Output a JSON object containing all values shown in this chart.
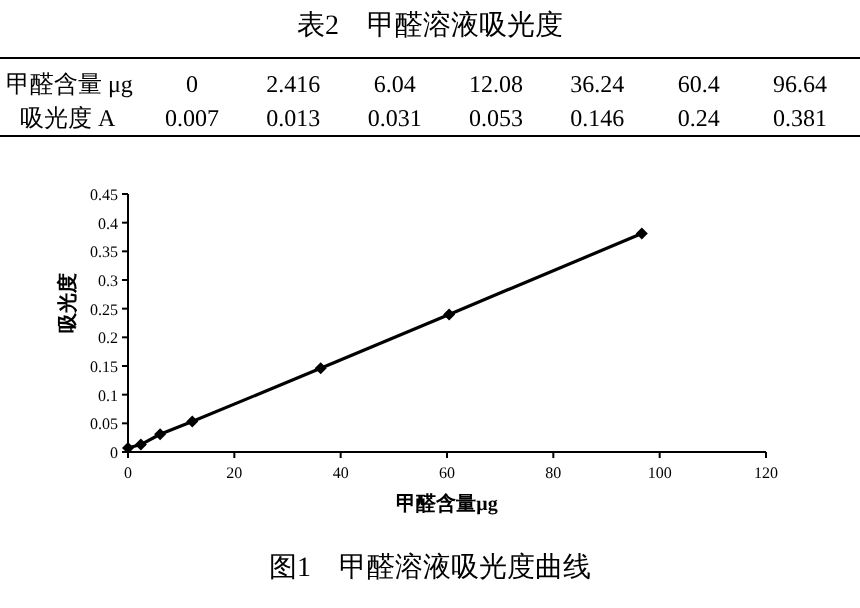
{
  "chart_data": {
    "type": "line",
    "title": "图1　甲醛溶液吸光度曲线",
    "xlabel": "甲醛含量μg",
    "ylabel": "吸光度",
    "annotations": [
      "表2　甲醛溶液吸光度",
      "甲醛含量 μg",
      "0",
      "2.416",
      "6.04",
      "12.08",
      "36.24",
      "60.4",
      "96.64",
      "吸光度 A",
      "0.007",
      "0.013",
      "0.031",
      "0.053",
      "0.146",
      "0.24",
      "0.381"
    ],
    "x": [
      0,
      2.416,
      6.04,
      12.08,
      36.24,
      60.4,
      96.64
    ],
    "series": [
      {
        "color": "#000000",
        "values": [
          0.007,
          0.013,
          0.031,
          0.053,
          0.146,
          0.24,
          0.381
        ]
      }
    ],
    "marker": "diamond",
    "line_style": "solid",
    "grid": false,
    "xlim": [
      0,
      120
    ],
    "xticks": [
      0,
      20,
      40,
      60,
      80,
      100,
      120
    ],
    "ylim": [
      0,
      0.45
    ],
    "yticks": [
      0,
      0.05,
      0.1,
      0.15,
      0.2,
      0.25,
      0.3,
      0.35,
      0.4,
      0.45
    ]
  }
}
